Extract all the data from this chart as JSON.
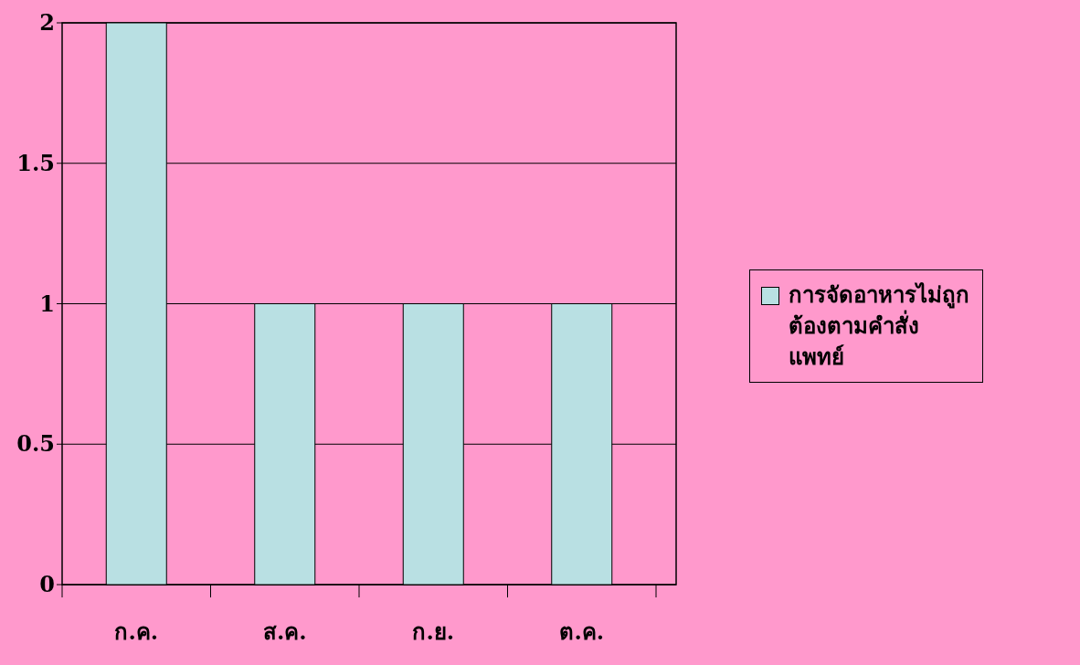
{
  "chart_data": {
    "type": "bar",
    "categories": [
      "ก.ค.",
      "ส.ค.",
      "ก.ย.",
      "ต.ค."
    ],
    "series": [
      {
        "name": "การจัดอาหารไม่ถูกต้องตามคำสั่งแพทย์",
        "color": "#b9e0e3",
        "values": [
          2,
          1,
          1,
          1
        ]
      }
    ],
    "ylim": [
      0,
      2
    ],
    "yticks": [
      0,
      0.5,
      1,
      1.5,
      2
    ],
    "grid": "y",
    "legend": "right"
  }
}
